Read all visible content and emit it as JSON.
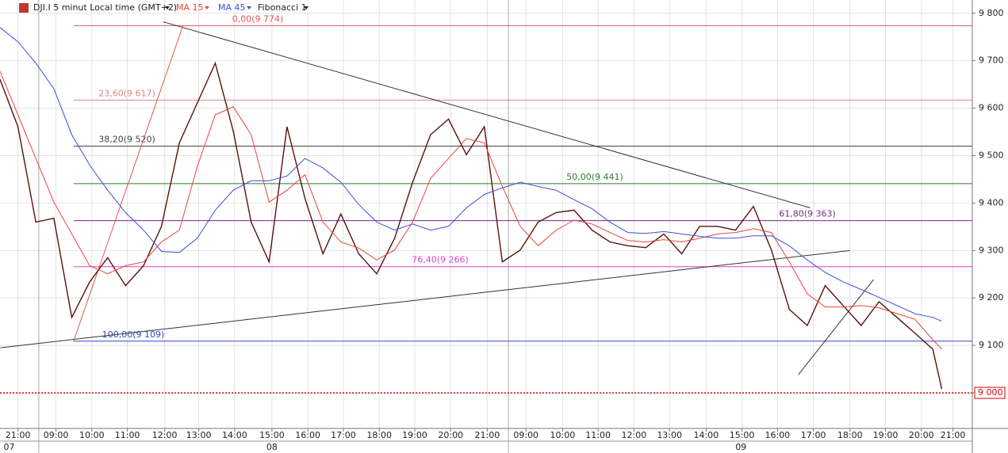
{
  "chart_data": {
    "type": "line",
    "title": "DJI.I 5 minut Local time (GMT+2)",
    "indicator_label": "Fibonacci 1",
    "xlim": [
      -0.5,
      26.6
    ],
    "ylim": [
      8925,
      9828
    ],
    "yticks": [
      {
        "value": 9000,
        "label": "9 000"
      },
      {
        "value": 9100,
        "label": "9 100"
      },
      {
        "value": 9200,
        "label": "9 200"
      },
      {
        "value": 9300,
        "label": "9 300"
      },
      {
        "value": 9400,
        "label": "9 400"
      },
      {
        "value": 9500,
        "label": "9 500"
      },
      {
        "value": 9600,
        "label": "9 600"
      },
      {
        "value": 9700,
        "label": "9 700"
      },
      {
        "value": 9800,
        "label": "9 800"
      }
    ],
    "xticks": [
      {
        "value": 0,
        "label": "21:00"
      },
      {
        "value": 1.06,
        "label": "09:00"
      },
      {
        "value": 2.06,
        "label": "10:00"
      },
      {
        "value": 3.05,
        "label": "11:00"
      },
      {
        "value": 4.09,
        "label": "12:00"
      },
      {
        "value": 5.04,
        "label": "13:00"
      },
      {
        "value": 6.04,
        "label": "14:00"
      },
      {
        "value": 7.08,
        "label": "15:00"
      },
      {
        "value": 8.08,
        "label": "16:00"
      },
      {
        "value": 9.07,
        "label": "17:00"
      },
      {
        "value": 10.07,
        "label": "18:00"
      },
      {
        "value": 11.06,
        "label": "19:00"
      },
      {
        "value": 12.06,
        "label": "20:00"
      },
      {
        "value": 13.08,
        "label": "21:00"
      },
      {
        "value": 14.16,
        "label": "09:00"
      },
      {
        "value": 15.18,
        "label": "10:00"
      },
      {
        "value": 16.17,
        "label": "11:00"
      },
      {
        "value": 17.17,
        "label": "12:00"
      },
      {
        "value": 18.16,
        "label": "13:00"
      },
      {
        "value": 19.18,
        "label": "14:00"
      },
      {
        "value": 20.18,
        "label": "15:00"
      },
      {
        "value": 21.17,
        "label": "16:00"
      },
      {
        "value": 22.17,
        "label": "17:00"
      },
      {
        "value": 23.19,
        "label": "18:00"
      },
      {
        "value": 24.18,
        "label": "19:00"
      },
      {
        "value": 25.18,
        "label": "20:00"
      },
      {
        "value": 26.06,
        "label": "21:00"
      }
    ],
    "days": [
      {
        "value": -0.4,
        "label": "07"
      },
      {
        "value": 7.08,
        "label": "08"
      },
      {
        "value": 20.15,
        "label": "09"
      }
    ],
    "day_breaks": [
      0.58,
      13.67
    ],
    "grid": true,
    "x": [
      -0.5,
      0,
      0.5,
      1,
      1.5,
      2,
      2.5,
      3,
      3.5,
      4,
      4.5,
      5,
      5.5,
      6,
      6.5,
      7,
      7.5,
      8,
      8.5,
      9,
      9.5,
      10,
      10.5,
      11,
      11.5,
      12,
      12.5,
      13,
      13.5,
      14,
      14.5,
      15,
      15.5,
      16,
      16.5,
      17,
      17.5,
      18,
      18.5,
      19,
      19.5,
      20,
      20.5,
      21,
      21.5,
      22,
      22.5,
      23,
      23.5,
      24,
      24.5,
      25,
      25.5,
      25.75
    ],
    "series": [
      {
        "name": "DJI.I 5 minut Local time (GMT+2)",
        "color": "#5a1010",
        "values": [
          9661,
          9561,
          9360,
          9368,
          9159,
          9234,
          9285,
          9226,
          9268,
          9351,
          9527,
          9611,
          9695,
          9552,
          9360,
          9276,
          9561,
          9410,
          9293,
          9377,
          9293,
          9251,
          9326,
          9444,
          9544,
          9577,
          9502,
          9561,
          9276,
          9301,
          9360,
          9380,
          9385,
          9343,
          9318,
          9310,
          9306,
          9335,
          9293,
          9351,
          9351,
          9343,
          9393,
          9301,
          9176,
          9142,
          9226,
          9184,
          9142,
          9192,
          9159,
          9126,
          9092,
          9008
        ]
      },
      {
        "name": "MA 15",
        "color": "#e8453c",
        "values": [
          9678,
          9586,
          9494,
          9402,
          9335,
          9268,
          9251,
          9268,
          9276,
          9318,
          9343,
          9477,
          9586,
          9603,
          9544,
          9402,
          9427,
          9460,
          9360,
          9318,
          9305,
          9280,
          9301,
          9360,
          9452,
          9494,
          9536,
          9527,
          9435,
          9351,
          9310,
          9343,
          9364,
          9356,
          9338,
          9321,
          9318,
          9323,
          9318,
          9326,
          9335,
          9338,
          9346,
          9338,
          9276,
          9209,
          9181,
          9181,
          9184,
          9179,
          9167,
          9155,
          9112,
          9092
        ]
      },
      {
        "name": "MA 45",
        "color": "#3c4fd8",
        "values": [
          9770,
          9740,
          9695,
          9641,
          9544,
          9480,
          9427,
          9380,
          9343,
          9298,
          9296,
          9326,
          9385,
          9427,
          9447,
          9447,
          9457,
          9494,
          9474,
          9444,
          9397,
          9360,
          9343,
          9356,
          9343,
          9351,
          9390,
          9418,
          9432,
          9444,
          9435,
          9427,
          9407,
          9388,
          9360,
          9338,
          9336,
          9340,
          9335,
          9330,
          9326,
          9326,
          9331,
          9331,
          9310,
          9280,
          9254,
          9234,
          9218,
          9201,
          9184,
          9167,
          9159,
          9151
        ]
      }
    ],
    "fib_levels": [
      {
        "label": "0,00(9 774)",
        "value": 9774,
        "color": "#e05555"
      },
      {
        "label": "23,60(9 617)",
        "value": 9617,
        "color": "#d08a8a"
      },
      {
        "label": "38,20(9 520)",
        "value": 9520,
        "color": "#444444"
      },
      {
        "label": "50,00(9 441)",
        "value": 9441,
        "color": "#2f7a2f"
      },
      {
        "label": "61,80(9 363)",
        "value": 9363,
        "color": "#7a2a8a"
      },
      {
        "label": "76,40(9 266)",
        "value": 9266,
        "color": "#e040d0"
      },
      {
        "label": "100,00(9 109)",
        "value": 9109,
        "color": "#3344cc"
      }
    ],
    "fib_start": 1.55,
    "trendlines": [
      {
        "x": [
          4.05,
          22.08
        ],
        "values": [
          9782,
          9390
        ],
        "color": "#333333"
      },
      {
        "x": [
          -0.49,
          23.19
        ],
        "values": [
          9095,
          9300
        ],
        "color": "#333333"
      },
      {
        "x": [
          21.75,
          23.85
        ],
        "values": [
          9038,
          9239
        ],
        "color": "#333333"
      },
      {
        "x": [
          1.55,
          4.6
        ],
        "values": [
          9109,
          9774
        ],
        "color": "#e05555"
      }
    ],
    "last_price": {
      "value": 9000,
      "label": "9 000",
      "color": "#dd0000"
    }
  }
}
